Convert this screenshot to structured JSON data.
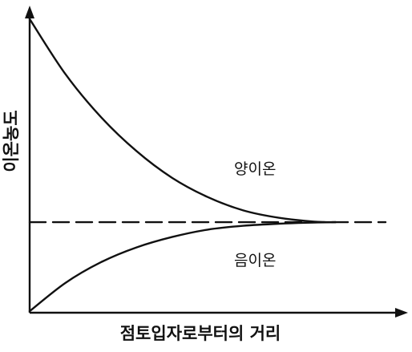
{
  "chart_data": {
    "type": "line",
    "title": "",
    "xlabel": "점토입자로부터의 거리",
    "ylabel": "이온농도",
    "xlim": [
      0,
      10
    ],
    "ylim": [
      0,
      10
    ],
    "ticks": "none",
    "grid": false,
    "legend": "none",
    "series": [
      {
        "name": "양이온",
        "style": "solid",
        "x": [
          0,
          1,
          2,
          3,
          4,
          5,
          6,
          7,
          8,
          8.6
        ],
        "y": [
          9.9,
          8.05,
          6.6,
          5.45,
          4.55,
          3.9,
          3.45,
          3.2,
          3.07,
          3.05
        ]
      },
      {
        "name": "음이온",
        "style": "solid",
        "x": [
          0,
          1,
          2,
          3,
          4,
          5,
          6,
          7,
          8,
          8.6
        ],
        "y": [
          0.05,
          1.0,
          1.7,
          2.2,
          2.55,
          2.8,
          2.93,
          3.0,
          3.04,
          3.05
        ]
      },
      {
        "name": "",
        "style": "dashed",
        "x": [
          0,
          10
        ],
        "y": [
          3.05,
          3.05
        ]
      }
    ],
    "colors": {
      "line": "#111111",
      "axis": "#111111",
      "background": "#ffffff"
    }
  }
}
